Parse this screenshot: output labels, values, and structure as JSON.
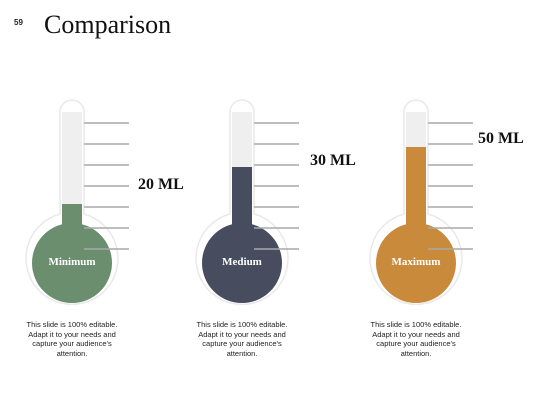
{
  "page_number": "59",
  "title": "Comparison",
  "thermometers": [
    {
      "name": "Minimum",
      "reading": "20 ML",
      "fill_level": 0.26,
      "color": "#6a8e6e",
      "caption": "This slide is 100% editable. Adapt it to your needs and capture your audience's attention."
    },
    {
      "name": "Medium",
      "reading": "30 ML",
      "fill_level": 0.56,
      "color": "#474c5e",
      "caption": "This slide is 100% editable. Adapt it to your needs and capture your audience's attention."
    },
    {
      "name": "Maximum",
      "reading": "50 ML",
      "fill_level": 0.72,
      "color": "#c98a3b",
      "caption": "This slide is 100% editable. Adapt it to your needs and capture your audience's attention."
    }
  ],
  "colors": {
    "tube_empty": "#efefef",
    "tick": "#a9a9a9",
    "outline": "#e9e9e9"
  }
}
